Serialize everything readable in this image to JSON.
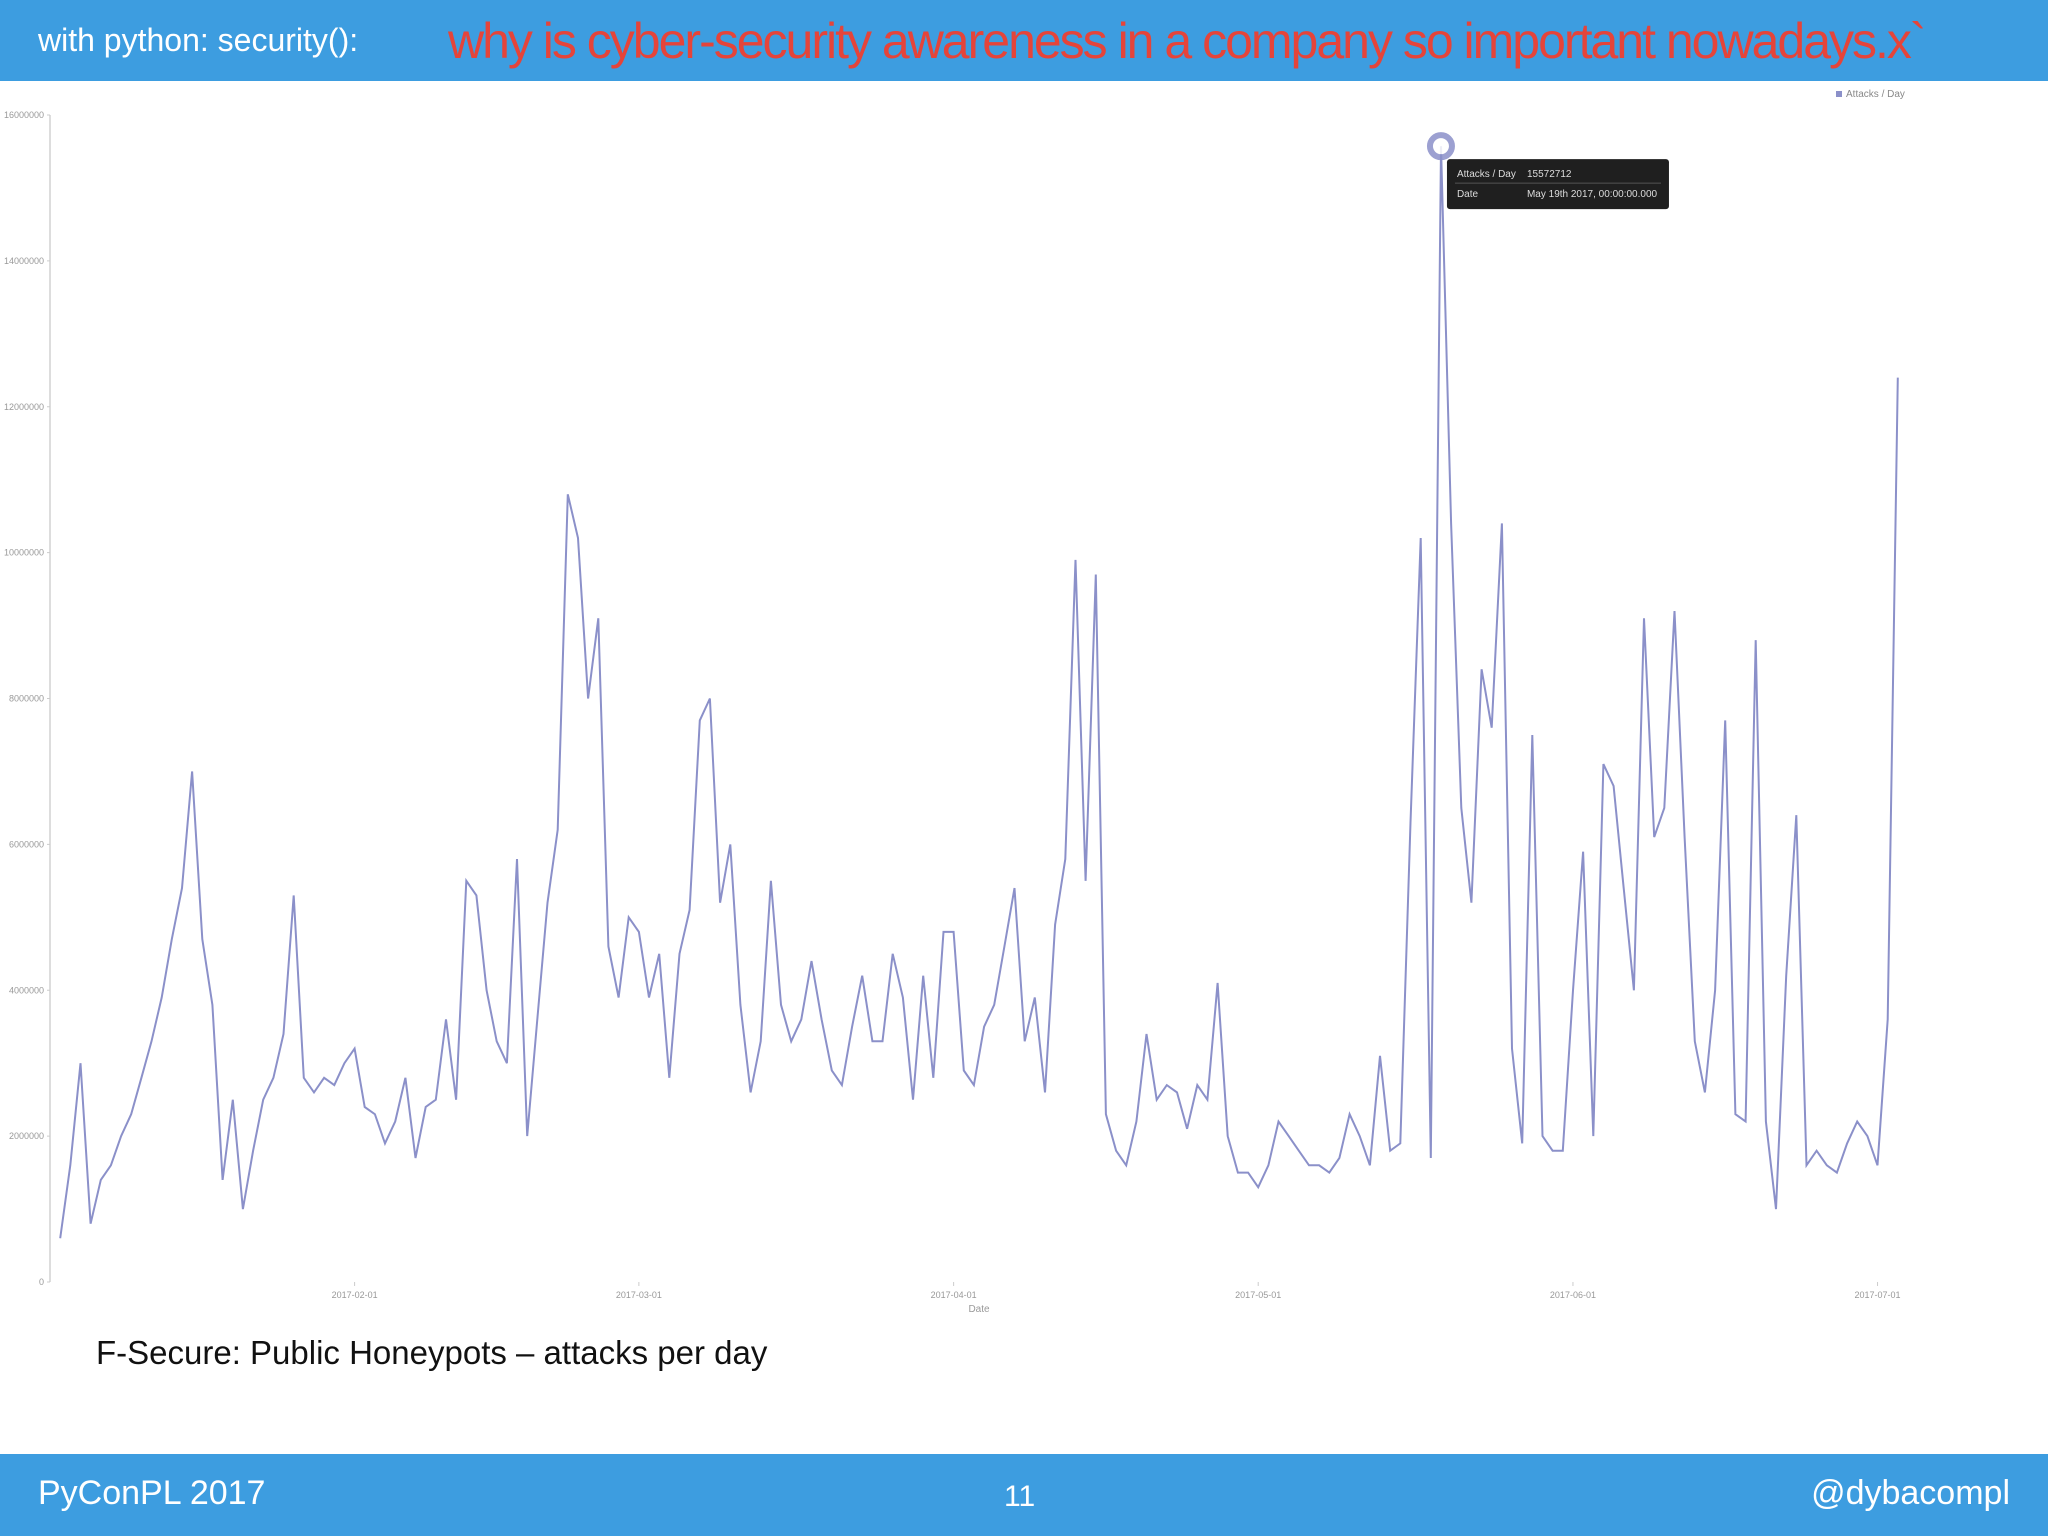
{
  "header": {
    "section": "with python: security():",
    "title": "why is cyber-security awareness in a company so important nowadays.x`"
  },
  "chart_data": {
    "type": "line",
    "x_label": "Date",
    "x": [
      "2017-01-03",
      "2017-01-04",
      "2017-01-05",
      "2017-01-06",
      "2017-01-07",
      "2017-01-08",
      "2017-01-09",
      "2017-01-10",
      "2017-01-11",
      "2017-01-12",
      "2017-01-13",
      "2017-01-14",
      "2017-01-15",
      "2017-01-16",
      "2017-01-17",
      "2017-01-18",
      "2017-01-19",
      "2017-01-20",
      "2017-01-21",
      "2017-01-22",
      "2017-01-23",
      "2017-01-24",
      "2017-01-25",
      "2017-01-26",
      "2017-01-27",
      "2017-01-28",
      "2017-01-29",
      "2017-01-30",
      "2017-01-31",
      "2017-02-01",
      "2017-02-02",
      "2017-02-03",
      "2017-02-04",
      "2017-02-05",
      "2017-02-06",
      "2017-02-07",
      "2017-02-08",
      "2017-02-09",
      "2017-02-10",
      "2017-02-11",
      "2017-02-12",
      "2017-02-13",
      "2017-02-14",
      "2017-02-15",
      "2017-02-16",
      "2017-02-17",
      "2017-02-18",
      "2017-02-19",
      "2017-02-20",
      "2017-02-21",
      "2017-02-22",
      "2017-02-23",
      "2017-02-24",
      "2017-02-25",
      "2017-02-26",
      "2017-02-27",
      "2017-02-28",
      "2017-03-01",
      "2017-03-02",
      "2017-03-03",
      "2017-03-04",
      "2017-03-05",
      "2017-03-06",
      "2017-03-07",
      "2017-03-08",
      "2017-03-09",
      "2017-03-10",
      "2017-03-11",
      "2017-03-12",
      "2017-03-13",
      "2017-03-14",
      "2017-03-15",
      "2017-03-16",
      "2017-03-17",
      "2017-03-18",
      "2017-03-19",
      "2017-03-20",
      "2017-03-21",
      "2017-03-22",
      "2017-03-23",
      "2017-03-24",
      "2017-03-25",
      "2017-03-26",
      "2017-03-27",
      "2017-03-28",
      "2017-03-29",
      "2017-03-30",
      "2017-03-31",
      "2017-04-01",
      "2017-04-02",
      "2017-04-03",
      "2017-04-04",
      "2017-04-05",
      "2017-04-06",
      "2017-04-07",
      "2017-04-08",
      "2017-04-09",
      "2017-04-10",
      "2017-04-11",
      "2017-04-12",
      "2017-04-13",
      "2017-04-14",
      "2017-04-15",
      "2017-04-16",
      "2017-04-17",
      "2017-04-18",
      "2017-04-19",
      "2017-04-20",
      "2017-04-21",
      "2017-04-22",
      "2017-04-23",
      "2017-04-24",
      "2017-04-25",
      "2017-04-26",
      "2017-04-27",
      "2017-04-28",
      "2017-04-29",
      "2017-04-30",
      "2017-05-01",
      "2017-05-02",
      "2017-05-03",
      "2017-05-04",
      "2017-05-05",
      "2017-05-06",
      "2017-05-07",
      "2017-05-08",
      "2017-05-09",
      "2017-05-10",
      "2017-05-11",
      "2017-05-12",
      "2017-05-13",
      "2017-05-14",
      "2017-05-15",
      "2017-05-16",
      "2017-05-17",
      "2017-05-18",
      "2017-05-19",
      "2017-05-20",
      "2017-05-21",
      "2017-05-22",
      "2017-05-23",
      "2017-05-24",
      "2017-05-25",
      "2017-05-26",
      "2017-05-27",
      "2017-05-28",
      "2017-05-29",
      "2017-05-30",
      "2017-05-31",
      "2017-06-01",
      "2017-06-02",
      "2017-06-03",
      "2017-06-04",
      "2017-06-05",
      "2017-06-06",
      "2017-06-07",
      "2017-06-08",
      "2017-06-09",
      "2017-06-10",
      "2017-06-11",
      "2017-06-12",
      "2017-06-13",
      "2017-06-14",
      "2017-06-15",
      "2017-06-16",
      "2017-06-17",
      "2017-06-18",
      "2017-06-19",
      "2017-06-20",
      "2017-06-21",
      "2017-06-22",
      "2017-06-23",
      "2017-06-24",
      "2017-06-25",
      "2017-06-26",
      "2017-06-27",
      "2017-06-28",
      "2017-06-29",
      "2017-06-30",
      "2017-07-01",
      "2017-07-02",
      "2017-07-03"
    ],
    "series": [
      {
        "name": "Attacks / Day",
        "color": "#8b90c9",
        "values": [
          600000,
          1600000,
          3000000,
          800000,
          1400000,
          1600000,
          2000000,
          2300000,
          2800000,
          3300000,
          3900000,
          4700000,
          5400000,
          7000000,
          4700000,
          3800000,
          1400000,
          2500000,
          1000000,
          1800000,
          2500000,
          2800000,
          3400000,
          5300000,
          2800000,
          2600000,
          2800000,
          2700000,
          3000000,
          3200000,
          2400000,
          2300000,
          1900000,
          2200000,
          2800000,
          1700000,
          2400000,
          2500000,
          3600000,
          2500000,
          5500000,
          5300000,
          4000000,
          3300000,
          3000000,
          5800000,
          2000000,
          3600000,
          5200000,
          6200000,
          10800000,
          10200000,
          8000000,
          9100000,
          4600000,
          3900000,
          5000000,
          4800000,
          3900000,
          4500000,
          2800000,
          4500000,
          5100000,
          7700000,
          8000000,
          5200000,
          6000000,
          3800000,
          2600000,
          3300000,
          5500000,
          3800000,
          3300000,
          3600000,
          4400000,
          3600000,
          2900000,
          2700000,
          3500000,
          4200000,
          3300000,
          3300000,
          4500000,
          3900000,
          2500000,
          4200000,
          2800000,
          4800000,
          4800000,
          2900000,
          2700000,
          3500000,
          3800000,
          4600000,
          5400000,
          3300000,
          3900000,
          2600000,
          4900000,
          5800000,
          9900000,
          5500000,
          9700000,
          2300000,
          1800000,
          1600000,
          2200000,
          3400000,
          2500000,
          2700000,
          2600000,
          2100000,
          2700000,
          2500000,
          4100000,
          2000000,
          1500000,
          1500000,
          1300000,
          1600000,
          2200000,
          2000000,
          1800000,
          1600000,
          1600000,
          1500000,
          1700000,
          2300000,
          2000000,
          1600000,
          3100000,
          1800000,
          1900000,
          6300000,
          10200000,
          1700000,
          15572712,
          10400000,
          6500000,
          5200000,
          8400000,
          7600000,
          10400000,
          3200000,
          1900000,
          7500000,
          2000000,
          1800000,
          1800000,
          4000000,
          5900000,
          2000000,
          7100000,
          6800000,
          5400000,
          4000000,
          9100000,
          6100000,
          6500000,
          9200000,
          6100000,
          3300000,
          2600000,
          4000000,
          7700000,
          2300000,
          2200000,
          8800000,
          2200000,
          1000000,
          4200000,
          6400000,
          1600000,
          1800000,
          1600000,
          1500000,
          1900000,
          2200000,
          2000000,
          1600000,
          3600000,
          12400000
        ]
      }
    ],
    "xlim": [
      "2017-01-02",
      "2017-07-04"
    ],
    "xticks": [
      "2017-02-01",
      "2017-03-01",
      "2017-04-01",
      "2017-05-01",
      "2017-06-01",
      "2017-07-01"
    ],
    "ylim": [
      0,
      16000000
    ],
    "yticks": [
      0,
      2000000,
      4000000,
      6000000,
      8000000,
      10000000,
      12000000,
      14000000,
      16000000
    ],
    "legend": "top-right",
    "tooltip": {
      "index": 136,
      "date_label": "Date",
      "date": "May 19th 2017, 00:00:00.000"
    }
  },
  "caption": "F-Secure: Public Honeypots – attacks per day",
  "footer": {
    "left": "PyConPL 2017",
    "page": "11",
    "right": "@dybacompl"
  }
}
